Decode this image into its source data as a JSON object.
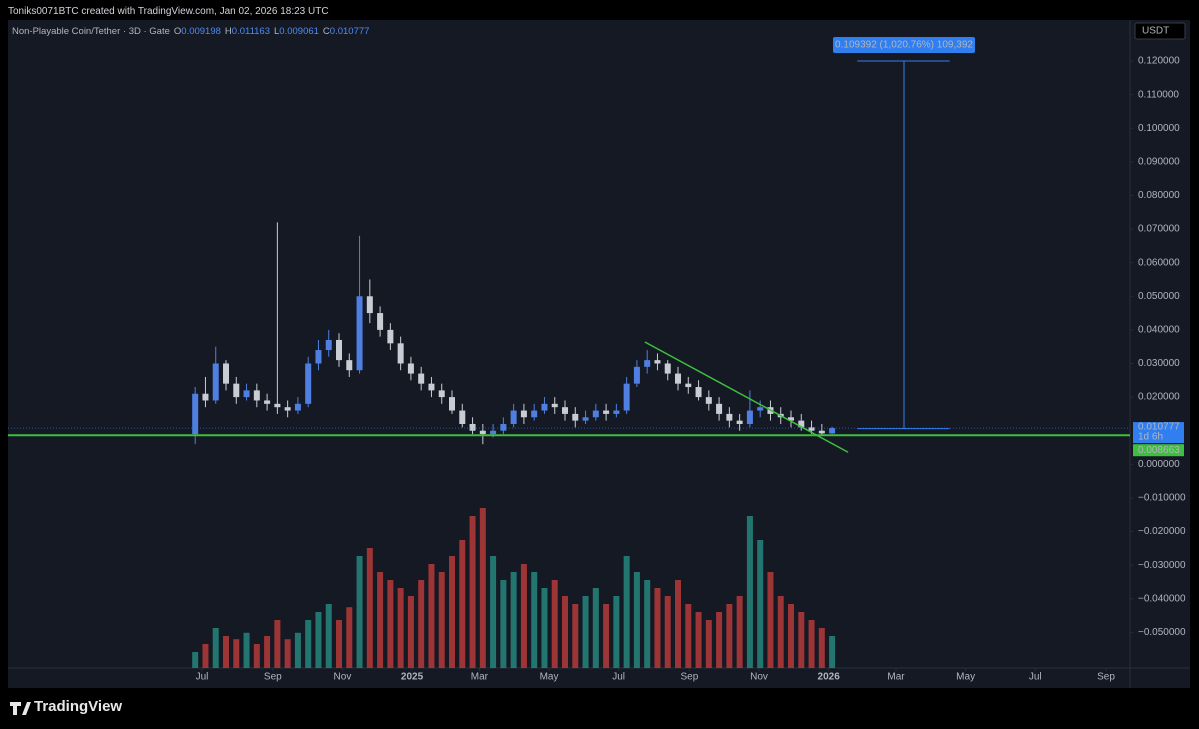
{
  "header": "Toniks0071BTC created with TradingView.com, Jan 02, 2026 18:23 UTC",
  "footer": {
    "brand": "TradingView"
  },
  "chart_data": {
    "type": "candlestick",
    "title": "Non-Playable Coin/Tether · 3D · Gate",
    "ohlc_legend": [
      {
        "label": "O",
        "value": 0.009198
      },
      {
        "label": "H",
        "value": 0.011163
      },
      {
        "label": "L",
        "value": 0.009061
      },
      {
        "label": "C",
        "value": 0.010777
      }
    ],
    "currency": "USDT",
    "up_color": "#4f7fe0",
    "down_color": "#c9ccd3",
    "volume_up_color": "#26877e",
    "volume_down_color": "#b53a3a",
    "x": [
      -6,
      3,
      12,
      21,
      30,
      39,
      48,
      57,
      66,
      75,
      84,
      93,
      102,
      111,
      120,
      129,
      138,
      147,
      156,
      165,
      174,
      183,
      192,
      201,
      210,
      219,
      228,
      237,
      246,
      255,
      264,
      273,
      282,
      291,
      300,
      309,
      318,
      327,
      336,
      345,
      354,
      363,
      372,
      381,
      390,
      399,
      408,
      417,
      426,
      435,
      444,
      453,
      462,
      471,
      480,
      489,
      498,
      507,
      516,
      525,
      534,
      543,
      552
    ],
    "open": [
      0.009,
      0.021,
      0.019,
      0.03,
      0.024,
      0.02,
      0.022,
      0.019,
      0.018,
      0.017,
      0.016,
      0.018,
      0.03,
      0.034,
      0.037,
      0.031,
      0.028,
      0.05,
      0.045,
      0.04,
      0.036,
      0.03,
      0.027,
      0.024,
      0.022,
      0.02,
      0.016,
      0.012,
      0.01,
      0.009,
      0.01,
      0.012,
      0.016,
      0.014,
      0.016,
      0.018,
      0.017,
      0.015,
      0.013,
      0.014,
      0.016,
      0.015,
      0.016,
      0.024,
      0.029,
      0.031,
      0.03,
      0.027,
      0.024,
      0.023,
      0.02,
      0.018,
      0.015,
      0.013,
      0.012,
      0.016,
      0.017,
      0.015,
      0.014,
      0.013,
      0.011,
      0.01,
      0.009198
    ],
    "high": [
      0.023,
      0.026,
      0.035,
      0.031,
      0.026,
      0.024,
      0.024,
      0.021,
      0.072,
      0.019,
      0.02,
      0.032,
      0.037,
      0.04,
      0.039,
      0.033,
      0.068,
      0.055,
      0.047,
      0.042,
      0.038,
      0.032,
      0.029,
      0.026,
      0.024,
      0.022,
      0.018,
      0.014,
      0.012,
      0.012,
      0.014,
      0.018,
      0.018,
      0.018,
      0.02,
      0.02,
      0.019,
      0.017,
      0.016,
      0.018,
      0.018,
      0.018,
      0.026,
      0.031,
      0.034,
      0.033,
      0.031,
      0.029,
      0.026,
      0.025,
      0.022,
      0.02,
      0.017,
      0.015,
      0.022,
      0.019,
      0.019,
      0.017,
      0.016,
      0.015,
      0.013,
      0.012,
      0.011163
    ],
    "low": [
      0.006,
      0.017,
      0.018,
      0.022,
      0.018,
      0.019,
      0.017,
      0.016,
      0.015,
      0.014,
      0.015,
      0.017,
      0.028,
      0.032,
      0.029,
      0.026,
      0.027,
      0.042,
      0.038,
      0.034,
      0.028,
      0.025,
      0.022,
      0.02,
      0.018,
      0.015,
      0.011,
      0.009,
      0.006,
      0.008,
      0.009,
      0.011,
      0.012,
      0.013,
      0.015,
      0.015,
      0.013,
      0.011,
      0.012,
      0.013,
      0.013,
      0.014,
      0.015,
      0.023,
      0.027,
      0.028,
      0.025,
      0.022,
      0.021,
      0.019,
      0.016,
      0.013,
      0.011,
      0.01,
      0.011,
      0.014,
      0.013,
      0.012,
      0.011,
      0.01,
      0.009,
      0.0088,
      0.009061
    ],
    "close": [
      0.021,
      0.019,
      0.03,
      0.024,
      0.02,
      0.022,
      0.019,
      0.018,
      0.017,
      0.016,
      0.018,
      0.03,
      0.034,
      0.037,
      0.031,
      0.028,
      0.05,
      0.045,
      0.04,
      0.036,
      0.03,
      0.027,
      0.024,
      0.022,
      0.02,
      0.016,
      0.012,
      0.01,
      0.009,
      0.01,
      0.012,
      0.016,
      0.014,
      0.016,
      0.018,
      0.017,
      0.015,
      0.013,
      0.014,
      0.016,
      0.015,
      0.016,
      0.024,
      0.029,
      0.031,
      0.03,
      0.027,
      0.024,
      0.023,
      0.02,
      0.018,
      0.015,
      0.013,
      0.012,
      0.016,
      0.017,
      0.015,
      0.014,
      0.013,
      0.011,
      0.01,
      0.0092,
      0.010777
    ],
    "volume": [
      10,
      15,
      25,
      20,
      18,
      22,
      15,
      20,
      30,
      18,
      22,
      30,
      35,
      40,
      30,
      38,
      70,
      75,
      60,
      55,
      50,
      45,
      55,
      65,
      60,
      70,
      80,
      95,
      100,
      70,
      55,
      60,
      65,
      60,
      50,
      55,
      45,
      40,
      45,
      50,
      40,
      45,
      70,
      60,
      55,
      50,
      45,
      55,
      40,
      35,
      30,
      35,
      40,
      45,
      95,
      80,
      60,
      45,
      40,
      35,
      30,
      25,
      20
    ],
    "xlim": [
      -170,
      813
    ],
    "xticks": [
      {
        "value": 0,
        "label": "Jul"
      },
      {
        "value": 62,
        "label": "Sep"
      },
      {
        "value": 123,
        "label": "Nov"
      },
      {
        "value": 184,
        "label": "2025"
      },
      {
        "value": 243,
        "label": "Mar"
      },
      {
        "value": 304,
        "label": "May"
      },
      {
        "value": 365,
        "label": "Jul"
      },
      {
        "value": 427,
        "label": "Sep"
      },
      {
        "value": 488,
        "label": "Nov"
      },
      {
        "value": 549,
        "label": "2026"
      },
      {
        "value": 608,
        "label": "Mar"
      },
      {
        "value": 669,
        "label": "May"
      },
      {
        "value": 730,
        "label": "Jul"
      },
      {
        "value": 792,
        "label": "Sep"
      }
    ],
    "ylim": [
      -0.0606,
      0.1322
    ],
    "yticks": [
      {
        "value": 0.12,
        "label": "0.120000"
      },
      {
        "value": 0.11,
        "label": "0.110000"
      },
      {
        "value": 0.1,
        "label": "0.100000"
      },
      {
        "value": 0.09,
        "label": "0.090000"
      },
      {
        "value": 0.08,
        "label": "0.080000"
      },
      {
        "value": 0.07,
        "label": "0.070000"
      },
      {
        "value": 0.06,
        "label": "0.060000"
      },
      {
        "value": 0.05,
        "label": "0.050000"
      },
      {
        "value": 0.04,
        "label": "0.040000"
      },
      {
        "value": 0.03,
        "label": "0.030000"
      },
      {
        "value": 0.02,
        "label": "0.020000"
      },
      {
        "value": 0,
        "label": "0.000000"
      },
      {
        "value": -0.01,
        "label": "−0.010000"
      },
      {
        "value": -0.02,
        "label": "−0.020000"
      },
      {
        "value": -0.03,
        "label": "−0.030000"
      },
      {
        "value": -0.04,
        "label": "−0.040000"
      },
      {
        "value": -0.05,
        "label": "−0.050000"
      }
    ],
    "last_price": {
      "value": 0.010777,
      "countdown": "1d 6h",
      "color": "#2f7ff0"
    },
    "support_line": {
      "value": 0.008663,
      "color": "#3fbf3f"
    },
    "trend_line": {
      "x": [
        388,
        566
      ],
      "y": [
        0.0364,
        0.0036
      ],
      "color": "#3fbf3f"
    },
    "measure": {
      "label": "0.109392 (1,020.76%) 109,392",
      "x": [
        574,
        655
      ],
      "x_mid": 615,
      "y": [
        0.010608,
        0.12
      ],
      "color": "#2f7ff0"
    }
  }
}
